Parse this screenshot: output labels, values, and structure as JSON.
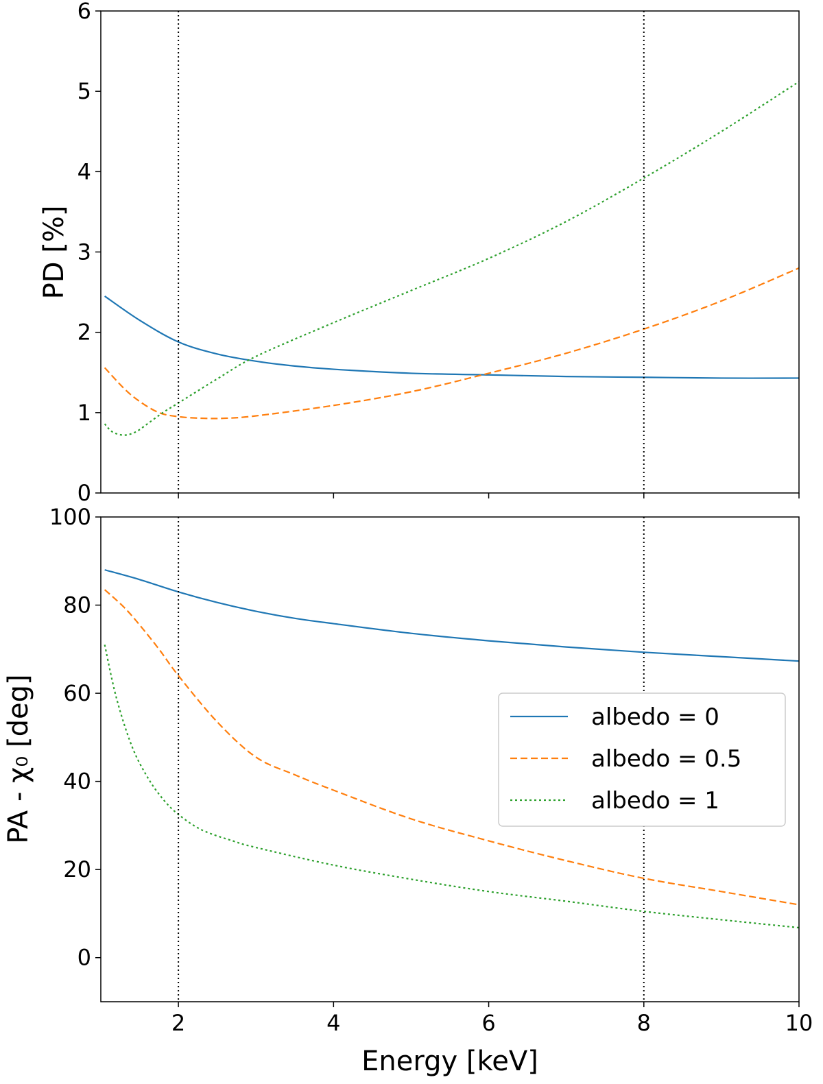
{
  "chart_data": [
    {
      "type": "line",
      "panel": "top",
      "title": "",
      "xlabel": "",
      "ylabel": "PD [%]",
      "xlim": [
        1,
        10
      ],
      "ylim": [
        0,
        6
      ],
      "xticks": [
        2,
        4,
        6,
        8,
        10
      ],
      "yticks": [
        0,
        1,
        2,
        3,
        4,
        5,
        6
      ],
      "ytick_labels": [
        "0",
        "1",
        "2",
        "3",
        "4",
        "5",
        "6"
      ],
      "show_xtick_labels": false,
      "vlines": [
        2,
        8
      ],
      "series": [
        {
          "name": "albedo = 0",
          "color": "#1f77b4",
          "dash": "solid",
          "x": [
            1.05,
            1.5,
            2,
            2.5,
            3,
            3.5,
            4,
            5,
            6,
            7,
            8,
            9,
            10
          ],
          "y": [
            2.45,
            2.15,
            1.88,
            1.73,
            1.64,
            1.58,
            1.54,
            1.49,
            1.47,
            1.45,
            1.44,
            1.43,
            1.43
          ]
        },
        {
          "name": "albedo = 0.5",
          "color": "#ff7f0e",
          "dash": "dashed",
          "x": [
            1.05,
            1.3,
            1.5,
            1.75,
            2,
            2.3,
            2.6,
            3,
            4,
            5,
            6,
            7,
            8,
            9,
            10
          ],
          "y": [
            1.56,
            1.3,
            1.14,
            1.0,
            0.95,
            0.93,
            0.93,
            0.96,
            1.09,
            1.26,
            1.49,
            1.74,
            2.04,
            2.39,
            2.8
          ]
        },
        {
          "name": "albedo = 1",
          "color": "#2ca02c",
          "dash": "dotted",
          "x": [
            1.05,
            1.15,
            1.3,
            1.45,
            1.6,
            1.8,
            2,
            2.5,
            3,
            4,
            5,
            6,
            7,
            8,
            9,
            10
          ],
          "y": [
            0.86,
            0.76,
            0.72,
            0.76,
            0.86,
            1.0,
            1.12,
            1.42,
            1.7,
            2.12,
            2.52,
            2.92,
            3.38,
            3.92,
            4.5,
            5.12
          ]
        }
      ]
    },
    {
      "type": "line",
      "panel": "bottom",
      "title": "",
      "xlabel": "Energy [keV]",
      "ylabel": "PA - χ₀ [deg]",
      "xlim": [
        1,
        10
      ],
      "ylim": [
        -10,
        100
      ],
      "xticks": [
        2,
        4,
        6,
        8,
        10
      ],
      "xtick_labels": [
        "2",
        "4",
        "6",
        "8",
        "10"
      ],
      "yticks": [
        0,
        20,
        40,
        60,
        80,
        100
      ],
      "ytick_labels": [
        "0",
        "20",
        "40",
        "60",
        "80",
        "100"
      ],
      "vlines": [
        2,
        8
      ],
      "legend": {
        "position": "center-right",
        "entries": [
          "albedo = 0",
          "albedo = 0.5",
          "albedo = 1"
        ]
      },
      "series": [
        {
          "name": "albedo = 0",
          "color": "#1f77b4",
          "dash": "solid",
          "x": [
            1.05,
            1.5,
            2,
            2.5,
            3,
            3.5,
            4,
            5,
            6,
            7,
            8,
            9,
            10
          ],
          "y": [
            88,
            85.8,
            83,
            80.6,
            78.6,
            77,
            75.8,
            73.6,
            71.9,
            70.5,
            69.3,
            68.3,
            67.3
          ]
        },
        {
          "name": "albedo = 0.5",
          "color": "#ff7f0e",
          "dash": "dashed",
          "x": [
            1.05,
            1.3,
            1.5,
            1.75,
            2,
            2.5,
            3,
            3.5,
            4,
            5,
            6,
            7,
            8,
            9,
            10
          ],
          "y": [
            83.5,
            79.5,
            75.5,
            70,
            64,
            53.5,
            45.5,
            41.5,
            38,
            31.5,
            26.5,
            22,
            18,
            15,
            12
          ]
        },
        {
          "name": "albedo = 1",
          "color": "#2ca02c",
          "dash": "dotted",
          "x": [
            1.05,
            1.2,
            1.4,
            1.6,
            1.8,
            2,
            2.3,
            2.7,
            3,
            4,
            5,
            6,
            7,
            8,
            9,
            10
          ],
          "y": [
            71,
            59,
            48,
            41,
            36,
            32.5,
            29,
            26.5,
            25,
            21,
            17.8,
            15,
            12.8,
            10.5,
            8.6,
            6.8
          ]
        }
      ]
    }
  ]
}
